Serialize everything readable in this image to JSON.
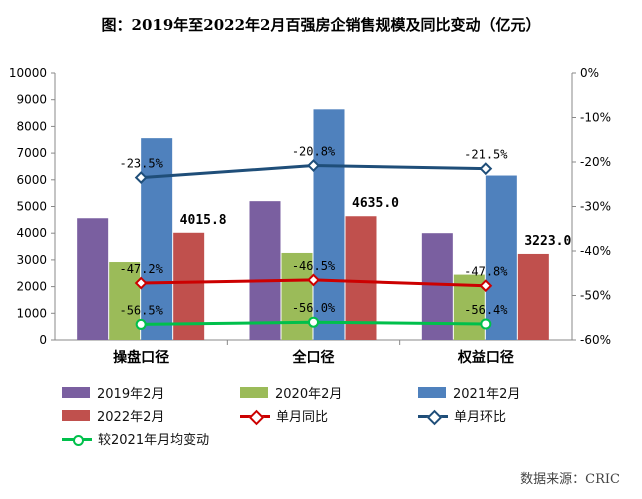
{
  "title": "图：2019年至2022年2月百强房企销售规模及同比变动（亿元）",
  "source": "数据来源：CRIC",
  "chart_data": {
    "type": "bar",
    "categories": [
      "操盘口径",
      "全口径",
      "权益口径"
    ],
    "series": [
      {
        "name": "2019年2月",
        "values": [
          4560,
          5200,
          4000
        ],
        "color": "#7a5fa0"
      },
      {
        "name": "2020年2月",
        "values": [
          2920,
          3260,
          2450
        ],
        "color": "#9bbb59"
      },
      {
        "name": "2021年2月",
        "values": [
          7560,
          8640,
          6160
        ],
        "color": "#4f81bd"
      },
      {
        "name": "2022年2月",
        "values": [
          4015.8,
          4635.0,
          3223.0
        ],
        "color": "#c0504d",
        "labels": [
          "4015.8",
          "4635.0",
          "3223.0"
        ]
      }
    ],
    "line_series": [
      {
        "name": "单月同比",
        "values": [
          -47.2,
          -46.5,
          -47.8
        ],
        "labels": [
          "-47.2%",
          "-46.5%",
          "-47.8%"
        ],
        "color": "#cc0000",
        "marker": "diamond"
      },
      {
        "name": "单月环比",
        "values": [
          -23.5,
          -20.8,
          -21.5
        ],
        "labels": [
          "-23.5%",
          "-20.8%",
          "-21.5%"
        ],
        "color": "#1f4e79",
        "marker": "diamond"
      },
      {
        "name": "较2021年月均变动",
        "values": [
          -56.5,
          -56.0,
          -56.4
        ],
        "labels": [
          "-56.5%",
          "-56.0%",
          "-56.4%"
        ],
        "color": "#00c04b",
        "marker": "circle"
      }
    ],
    "ylim": [
      0,
      10000
    ],
    "yticks": [
      "0",
      "1000",
      "2000",
      "3000",
      "4000",
      "5000",
      "6000",
      "7000",
      "8000",
      "9000",
      "10000"
    ],
    "y2lim": [
      -60,
      0
    ],
    "y2ticks": [
      "-60%",
      "-50%",
      "-40%",
      "-30%",
      "-20%",
      "-10%",
      "0%"
    ],
    "legend_position": "bottom"
  },
  "legend": {
    "items": [
      {
        "label": "2019年2月",
        "kind": "bar",
        "color": "#7a5fa0"
      },
      {
        "label": "2020年2月",
        "kind": "bar",
        "color": "#9bbb59"
      },
      {
        "label": "2021年2月",
        "kind": "bar",
        "color": "#4f81bd"
      },
      {
        "label": "2022年2月",
        "kind": "bar",
        "color": "#c0504d"
      },
      {
        "label": "单月同比",
        "kind": "line",
        "color": "#cc0000"
      },
      {
        "label": "单月环比",
        "kind": "line",
        "color": "#1f4e79"
      },
      {
        "label": "较2021年月均变动",
        "kind": "line-round",
        "color": "#00c04b"
      }
    ]
  }
}
